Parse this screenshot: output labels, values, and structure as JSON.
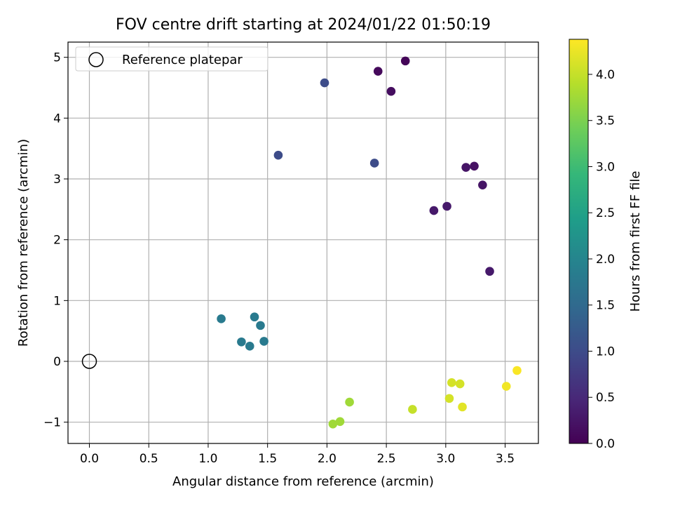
{
  "chart_data": {
    "type": "scatter",
    "title": "FOV centre drift starting at 2024/01/22 01:50:19",
    "xlabel": "Angular distance from reference (arcmin)",
    "ylabel": "Rotation from reference (arcmin)",
    "xlim": [
      -0.18,
      3.78
    ],
    "ylim": [
      -1.35,
      5.25
    ],
    "xticks": [
      0.0,
      0.5,
      1.0,
      1.5,
      2.0,
      2.5,
      3.0,
      3.5
    ],
    "xtick_labels": [
      "0.0",
      "0.5",
      "1.0",
      "1.5",
      "2.0",
      "2.5",
      "3.0",
      "3.5"
    ],
    "yticks": [
      -1,
      0,
      1,
      2,
      3,
      4,
      5
    ],
    "ytick_labels": [
      "−1",
      "0",
      "1",
      "2",
      "3",
      "4",
      "5"
    ],
    "grid": true,
    "legend": {
      "placement": "top-left",
      "entries": [
        "Reference platepar"
      ]
    },
    "reference_point": {
      "x": 0.0,
      "y": 0.0,
      "label": "Reference platepar"
    },
    "colorbar": {
      "label": "Hours from first FF file",
      "colormap": "viridis",
      "range": [
        0.0,
        4.38
      ],
      "ticks": [
        0.0,
        0.5,
        1.0,
        1.5,
        2.0,
        2.5,
        3.0,
        3.5,
        4.0
      ],
      "tick_labels": [
        "0.0",
        "0.5",
        "1.0",
        "1.5",
        "2.0",
        "2.5",
        "3.0",
        "3.5",
        "4.0"
      ]
    },
    "points": [
      {
        "x": 2.66,
        "y": 4.94,
        "hours": 0.05
      },
      {
        "x": 2.43,
        "y": 4.77,
        "hours": 0.1
      },
      {
        "x": 2.54,
        "y": 4.44,
        "hours": 0.15
      },
      {
        "x": 3.24,
        "y": 3.21,
        "hours": 0.2
      },
      {
        "x": 3.17,
        "y": 3.19,
        "hours": 0.25
      },
      {
        "x": 3.31,
        "y": 2.9,
        "hours": 0.25
      },
      {
        "x": 3.01,
        "y": 2.55,
        "hours": 0.3
      },
      {
        "x": 2.9,
        "y": 2.48,
        "hours": 0.3
      },
      {
        "x": 3.37,
        "y": 1.48,
        "hours": 0.3
      },
      {
        "x": 1.98,
        "y": 4.58,
        "hours": 1.0
      },
      {
        "x": 1.59,
        "y": 3.39,
        "hours": 1.0
      },
      {
        "x": 2.4,
        "y": 3.26,
        "hours": 1.0
      },
      {
        "x": 1.11,
        "y": 0.7,
        "hours": 1.8
      },
      {
        "x": 1.39,
        "y": 0.73,
        "hours": 1.8
      },
      {
        "x": 1.44,
        "y": 0.59,
        "hours": 1.8
      },
      {
        "x": 1.28,
        "y": 0.32,
        "hours": 1.8
      },
      {
        "x": 1.35,
        "y": 0.25,
        "hours": 1.8
      },
      {
        "x": 1.47,
        "y": 0.33,
        "hours": 1.8
      },
      {
        "x": 2.19,
        "y": -0.67,
        "hours": 3.75
      },
      {
        "x": 2.11,
        "y": -0.99,
        "hours": 3.75
      },
      {
        "x": 2.05,
        "y": -1.03,
        "hours": 3.75
      },
      {
        "x": 2.72,
        "y": -0.79,
        "hours": 4.0
      },
      {
        "x": 3.05,
        "y": -0.35,
        "hours": 4.1
      },
      {
        "x": 3.03,
        "y": -0.61,
        "hours": 4.1
      },
      {
        "x": 3.12,
        "y": -0.37,
        "hours": 4.1
      },
      {
        "x": 3.14,
        "y": -0.75,
        "hours": 4.2
      },
      {
        "x": 3.51,
        "y": -0.41,
        "hours": 4.3
      },
      {
        "x": 3.6,
        "y": -0.15,
        "hours": 4.35
      }
    ]
  }
}
